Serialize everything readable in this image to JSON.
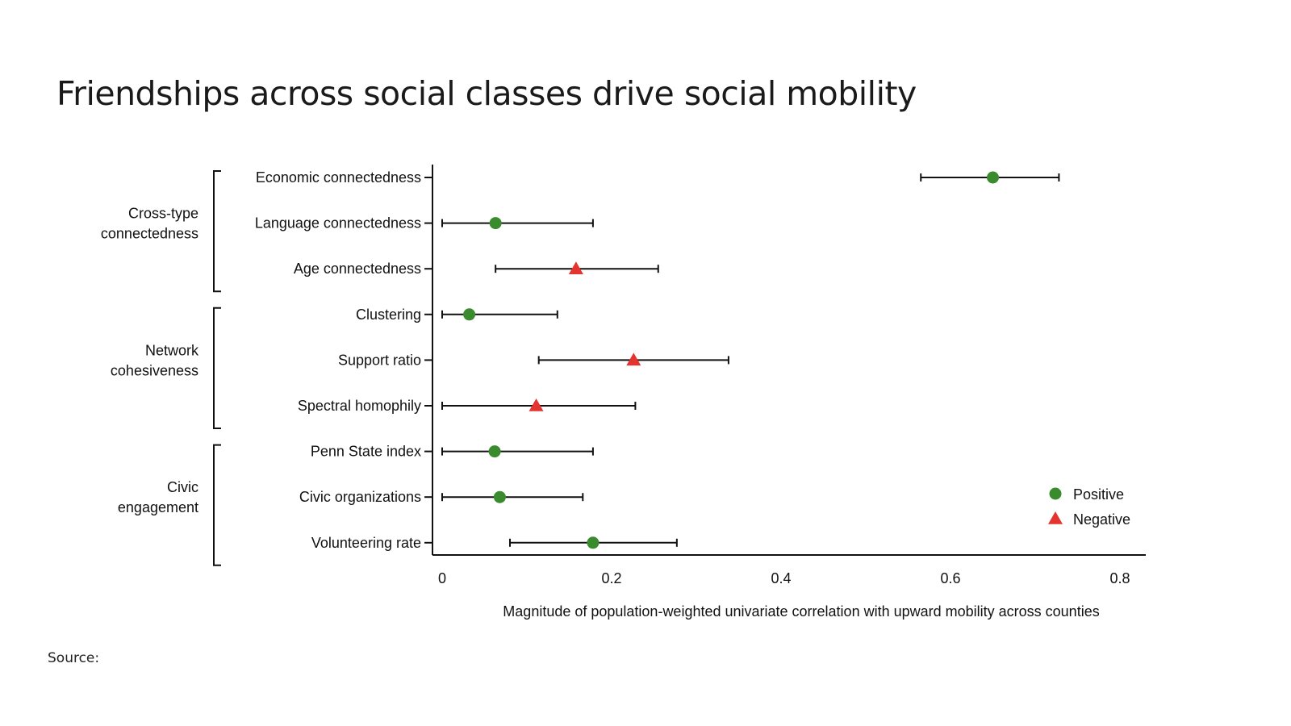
{
  "page": {
    "title": "Friendships across social classes drive social mobility",
    "source_label": "Source:"
  },
  "chart_data": {
    "type": "scatter",
    "subtype": "dot-with-error-bars",
    "xlabel": "Magnitude of population-weighted univariate correlation with upward mobility across counties",
    "xlim": [
      0,
      0.8
    ],
    "xticks": [
      0,
      0.2,
      0.4,
      0.6,
      0.8
    ],
    "xtick_labels": [
      "0",
      "0.2",
      "0.4",
      "0.6",
      "0.8"
    ],
    "grid": false,
    "legend_position": "bottom-right",
    "legend": [
      {
        "label": "Positive",
        "marker": "circle",
        "color": "#3a8a2e"
      },
      {
        "label": "Negative",
        "marker": "triangle",
        "color": "#e3342f"
      }
    ],
    "groups": [
      {
        "label_lines": [
          "Cross-type",
          "connectedness"
        ],
        "rows": [
          0,
          1,
          2
        ]
      },
      {
        "label_lines": [
          "Network",
          "cohesiveness"
        ],
        "rows": [
          3,
          4,
          5
        ]
      },
      {
        "label_lines": [
          "Civic",
          "engagement"
        ],
        "rows": [
          6,
          7,
          8
        ]
      }
    ],
    "rows": [
      {
        "label": "Economic connectedness",
        "value": 0.65,
        "low": 0.565,
        "high": 0.728,
        "sign": "Positive"
      },
      {
        "label": "Language connectedness",
        "value": 0.063,
        "low": 0.0,
        "high": 0.178,
        "sign": "Positive"
      },
      {
        "label": "Age connectedness",
        "value": 0.158,
        "low": 0.063,
        "high": 0.255,
        "sign": "Negative"
      },
      {
        "label": "Clustering",
        "value": 0.032,
        "low": 0.0,
        "high": 0.136,
        "sign": "Positive"
      },
      {
        "label": "Support ratio",
        "value": 0.226,
        "low": 0.114,
        "high": 0.338,
        "sign": "Negative"
      },
      {
        "label": "Spectral homophily",
        "value": 0.111,
        "low": 0.0,
        "high": 0.228,
        "sign": "Negative"
      },
      {
        "label": "Penn State index",
        "value": 0.062,
        "low": 0.0,
        "high": 0.178,
        "sign": "Positive"
      },
      {
        "label": "Civic organizations",
        "value": 0.068,
        "low": 0.0,
        "high": 0.166,
        "sign": "Positive"
      },
      {
        "label": "Volunteering rate",
        "value": 0.178,
        "low": 0.08,
        "high": 0.277,
        "sign": "Positive"
      }
    ]
  }
}
